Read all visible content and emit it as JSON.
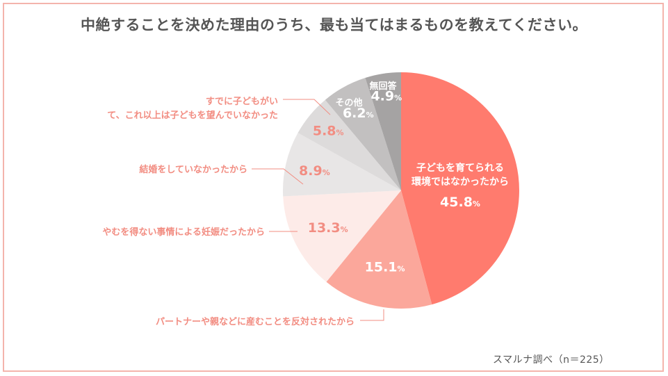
{
  "chart_data": {
    "type": "pie",
    "title": "中絶することを決めた理由のうち、最も当てはまるものを教えてください。",
    "source": "スマルナ調べ（n＝225）",
    "unit": "%",
    "slices": [
      {
        "label": "子どもを育てられる環境ではなかったから",
        "value": 45.8,
        "value_text": "45.8",
        "color": "#ff7b6e"
      },
      {
        "label": "パートナーや親などに産むことを反対されたから",
        "value": 15.1,
        "value_text": "15.1",
        "color": "#fba79b"
      },
      {
        "label": "やむを得ない事情による妊娠だったから",
        "value": 13.3,
        "value_text": "13.3",
        "color": "#fdebe8"
      },
      {
        "label": "結婚をしていなかったから",
        "value": 8.9,
        "value_text": "8.9",
        "color": "#e8e6e6"
      },
      {
        "label": "すでに子どもがいて、これ以上は子どもを望んでいなかった",
        "value": 5.8,
        "value_text": "5.8",
        "color": "#dddbdb"
      },
      {
        "label": "その他",
        "value": 6.2,
        "value_text": "6.2",
        "color": "#c2c0c0"
      },
      {
        "label": "無回答",
        "value": 4.9,
        "value_text": "4.9",
        "color": "#a5a3a3"
      }
    ]
  }
}
